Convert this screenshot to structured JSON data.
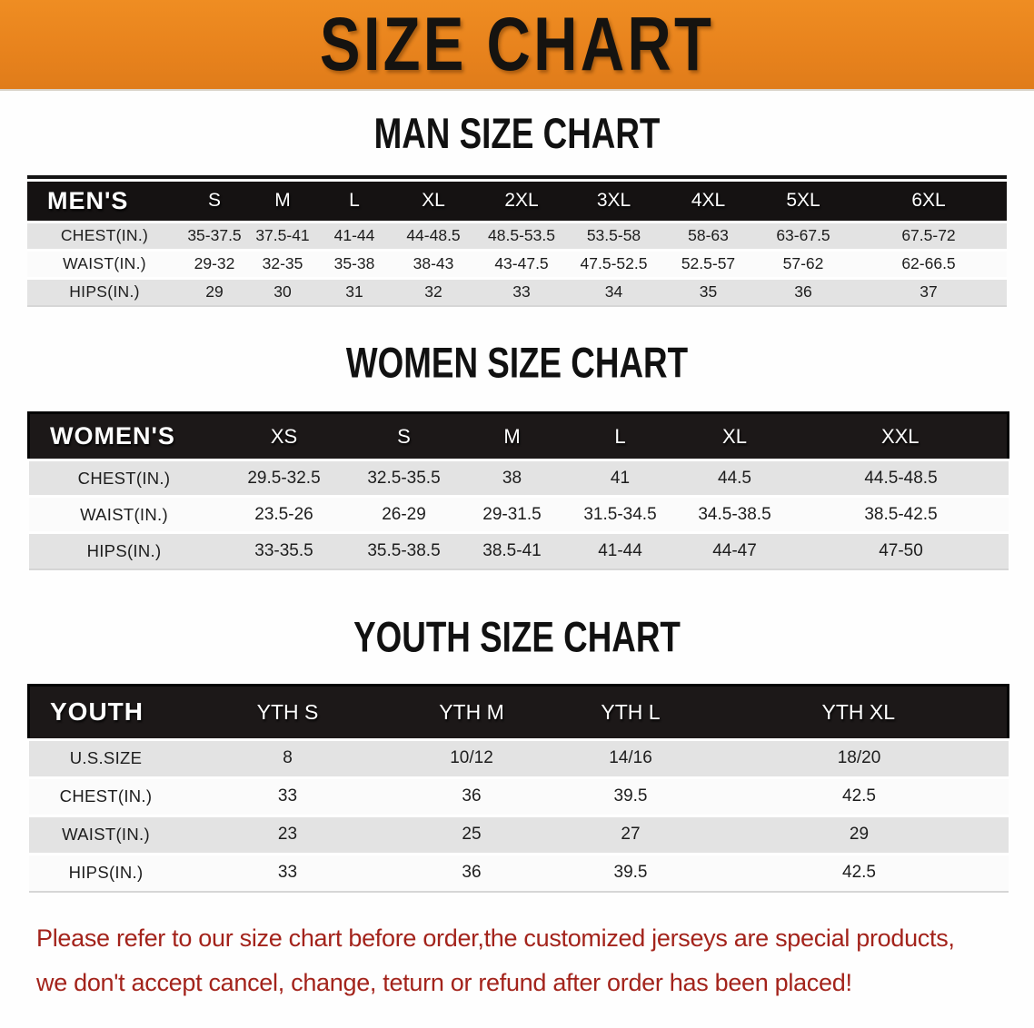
{
  "banner": {
    "title": "SIZE CHART",
    "bg_color": "#e8831d"
  },
  "men": {
    "heading": "MAN SIZE CHART",
    "header_label": "MEN'S",
    "columns": [
      "S",
      "M",
      "L",
      "XL",
      "2XL",
      "3XL",
      "4XL",
      "5XL",
      "6XL"
    ],
    "rows": [
      {
        "label": "CHEST(IN.)",
        "values": [
          "35-37.5",
          "37.5-41",
          "41-44",
          "44-48.5",
          "48.5-53.5",
          "53.5-58",
          "58-63",
          "63-67.5",
          "67.5-72"
        ]
      },
      {
        "label": "WAIST(IN.)",
        "values": [
          "29-32",
          "32-35",
          "35-38",
          "38-43",
          "43-47.5",
          "47.5-52.5",
          "52.5-57",
          "57-62",
          "62-66.5"
        ]
      },
      {
        "label": "HIPS(IN.)",
        "values": [
          "29",
          "30",
          "31",
          "32",
          "33",
          "34",
          "35",
          "36",
          "37"
        ]
      }
    ]
  },
  "women": {
    "heading": "WOMEN SIZE CHART",
    "header_label": "WOMEN'S",
    "columns": [
      "XS",
      "S",
      "M",
      "L",
      "XL",
      "XXL"
    ],
    "rows": [
      {
        "label": "CHEST(IN.)",
        "values": [
          "29.5-32.5",
          "32.5-35.5",
          "38",
          "41",
          "44.5",
          "44.5-48.5"
        ]
      },
      {
        "label": "WAIST(IN.)",
        "values": [
          "23.5-26",
          "26-29",
          "29-31.5",
          "31.5-34.5",
          "34.5-38.5",
          "38.5-42.5"
        ]
      },
      {
        "label": "HIPS(IN.)",
        "values": [
          "33-35.5",
          "35.5-38.5",
          "38.5-41",
          "41-44",
          "44-47",
          "47-50"
        ]
      }
    ]
  },
  "youth": {
    "heading": "YOUTH SIZE CHART",
    "header_label": "YOUTH",
    "columns": [
      "YTH S",
      "YTH M",
      "YTH L",
      "YTH XL"
    ],
    "rows": [
      {
        "label": "U.S.SIZE",
        "values": [
          "8",
          "10/12",
          "14/16",
          "18/20"
        ]
      },
      {
        "label": "CHEST(IN.)",
        "values": [
          "33",
          "36",
          "39.5",
          "42.5"
        ]
      },
      {
        "label": "WAIST(IN.)",
        "values": [
          "23",
          "25",
          "27",
          "29"
        ]
      },
      {
        "label": "HIPS(IN.)",
        "values": [
          "33",
          "36",
          "39.5",
          "42.5"
        ]
      }
    ]
  },
  "disclaimer": {
    "line1": "Please refer to our size chart before order,the customized jerseys are special products,",
    "line2": "we don't accept cancel, change, teturn or refund after order has been placed!",
    "color": "#a3231b"
  }
}
